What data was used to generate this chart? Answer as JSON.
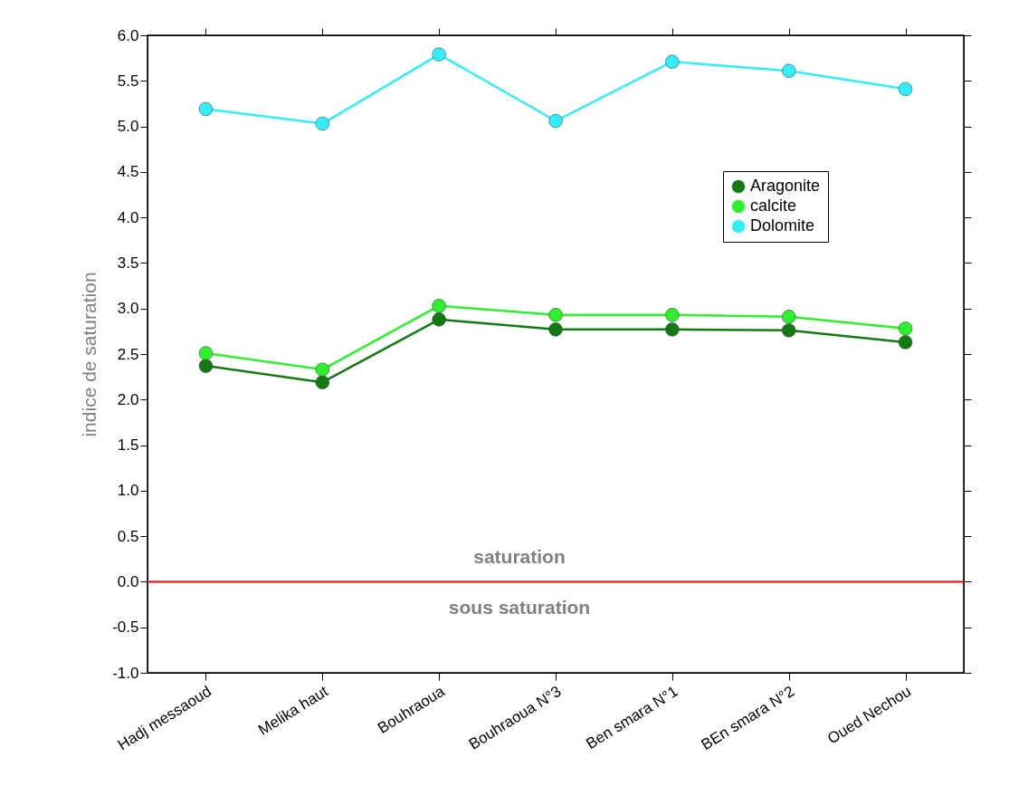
{
  "chart_data": {
    "type": "line",
    "ylabel": "indice de saturation",
    "categories": [
      "Hadj messaoud",
      "Melika haut",
      "Bouhraoua",
      "Bouhraoua N°3",
      "Ben smara N°1",
      "BEn smara N°2",
      "Oued Nechou"
    ],
    "series": [
      {
        "name": "Aragonite",
        "color": "#137a13",
        "values": [
          2.37,
          2.19,
          2.88,
          2.77,
          2.77,
          2.76,
          2.63
        ]
      },
      {
        "name": "calcite",
        "color": "#2ef02e",
        "values": [
          2.51,
          2.33,
          3.03,
          2.93,
          2.93,
          2.91,
          2.78
        ]
      },
      {
        "name": "Dolomite",
        "color": "#33eefa",
        "values": [
          5.19,
          5.03,
          5.79,
          5.06,
          5.71,
          5.61,
          5.41
        ]
      }
    ],
    "ylim": [
      -1,
      6
    ],
    "yticks": [
      {
        "value": -1,
        "label": "-1.0"
      },
      {
        "value": -0.5,
        "label": "-0.5"
      },
      {
        "value": 0,
        "label": "0.0"
      },
      {
        "value": 0.5,
        "label": "0.5"
      },
      {
        "value": 1,
        "label": "1.0"
      },
      {
        "value": 1.5,
        "label": "1.5"
      },
      {
        "value": 2,
        "label": "2.0"
      },
      {
        "value": 2.5,
        "label": "2.5"
      },
      {
        "value": 3,
        "label": "3.0"
      },
      {
        "value": 3.5,
        "label": "3.5"
      },
      {
        "value": 4,
        "label": "4.0"
      },
      {
        "value": 4.5,
        "label": "4.5"
      },
      {
        "value": 5,
        "label": "5.0"
      },
      {
        "value": 5.5,
        "label": "5.5"
      },
      {
        "value": 6,
        "label": "6.0"
      }
    ],
    "ref_lines": [
      {
        "axis": "y",
        "value": 0,
        "color": "#ff0000"
      }
    ],
    "annotations": [
      "saturation",
      "sous saturation"
    ],
    "marker": "circle",
    "line_style": "solid",
    "grid": false,
    "legend": "top right"
  }
}
